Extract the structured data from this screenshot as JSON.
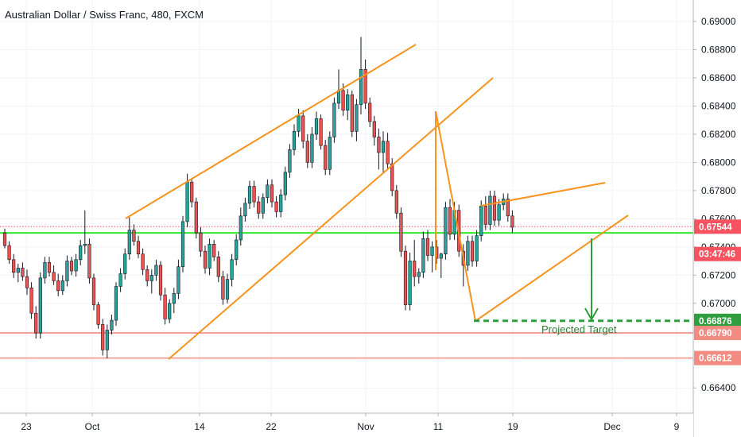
{
  "header": {
    "title": "Australian Dollar / Swiss Franc, 480, FXCM"
  },
  "colors": {
    "up": "#26a69a",
    "down": "#ef5350",
    "candle_border": "#131722",
    "drawing": "#f7931e",
    "support_green": "#2ee82e",
    "resistance_red": "#f28b82",
    "target_green": "#2e9e3e",
    "price_badge": "#f7525f"
  },
  "chart_data": {
    "type": "candlestick",
    "title": "Australian Dollar / Swiss Franc, 480, FXCM",
    "ylim": [
      0.6628,
      0.6907
    ],
    "y_ticks": [
      "0.69000",
      "0.68800",
      "0.68600",
      "0.68400",
      "0.68200",
      "0.68000",
      "0.67800",
      "0.67600",
      "0.67400",
      "0.67200",
      "0.67000",
      "0.66800",
      "0.66600",
      "0.66400"
    ],
    "x_ticks": [
      "23",
      "Oct",
      "14",
      "22",
      "Nov",
      "11",
      "19",
      "Dec",
      "9"
    ],
    "price_labels": [
      {
        "text": "0.67544",
        "value": 0.67544,
        "color": "#f7525f"
      },
      {
        "text": "03:47:46",
        "value": 0.6735,
        "color": "#f7525f"
      },
      {
        "text": "0.66876",
        "value": 0.66876,
        "color": "#2e9e3e"
      },
      {
        "text": "0.66790",
        "value": 0.6679,
        "color": "#f28b82"
      },
      {
        "text": "0.66612",
        "value": 0.66612,
        "color": "#f28b82"
      }
    ],
    "horizontal_lines": [
      {
        "value": 0.675,
        "color": "#2ee82e",
        "style": "solid"
      },
      {
        "value": 0.6679,
        "color": "#f28b82",
        "style": "solid"
      },
      {
        "value": 0.66612,
        "color": "#f28b82",
        "style": "solid"
      },
      {
        "value": 0.67544,
        "color": "#f7525f",
        "style": "dotted"
      },
      {
        "value": 0.66876,
        "color": "#2e9e3e",
        "style": "dashed"
      }
    ],
    "annotations": [
      {
        "text": "Projected Target"
      }
    ],
    "candles": [
      [
        0.675,
        0.6753,
        0.6739,
        0.6741
      ],
      [
        0.6741,
        0.6744,
        0.6728,
        0.6731
      ],
      [
        0.6731,
        0.6735,
        0.6718,
        0.6722
      ],
      [
        0.6722,
        0.6728,
        0.6715,
        0.6725
      ],
      [
        0.6725,
        0.6729,
        0.6716,
        0.6719
      ],
      [
        0.6719,
        0.6724,
        0.6706,
        0.6711
      ],
      [
        0.6711,
        0.6715,
        0.6689,
        0.6693
      ],
      [
        0.6693,
        0.6698,
        0.6675,
        0.6679
      ],
      [
        0.6679,
        0.6722,
        0.6675,
        0.6718
      ],
      [
        0.6718,
        0.6733,
        0.6714,
        0.6729
      ],
      [
        0.6729,
        0.6733,
        0.6719,
        0.6722
      ],
      [
        0.6722,
        0.6727,
        0.6713,
        0.6716
      ],
      [
        0.6716,
        0.6721,
        0.6705,
        0.6709
      ],
      [
        0.6709,
        0.672,
        0.6706,
        0.6716
      ],
      [
        0.6716,
        0.6734,
        0.6712,
        0.673
      ],
      [
        0.673,
        0.6733,
        0.672,
        0.6723
      ],
      [
        0.6723,
        0.6735,
        0.6719,
        0.6731
      ],
      [
        0.6731,
        0.6745,
        0.6727,
        0.6741
      ],
      [
        0.6741,
        0.6766,
        0.6735,
        0.6742
      ],
      [
        0.6742,
        0.6746,
        0.6714,
        0.6718
      ],
      [
        0.6718,
        0.6721,
        0.6695,
        0.6699
      ],
      [
        0.6699,
        0.6701,
        0.6682,
        0.6685
      ],
      [
        0.6685,
        0.6689,
        0.6663,
        0.6667
      ],
      [
        0.6667,
        0.6685,
        0.6661,
        0.6681
      ],
      [
        0.6681,
        0.6692,
        0.6678,
        0.6688
      ],
      [
        0.6688,
        0.6715,
        0.6684,
        0.6712
      ],
      [
        0.6712,
        0.6725,
        0.6708,
        0.6721
      ],
      [
        0.6721,
        0.6739,
        0.6717,
        0.6735
      ],
      [
        0.6735,
        0.6761,
        0.6731,
        0.6752
      ],
      [
        0.6752,
        0.6756,
        0.6741,
        0.6744
      ],
      [
        0.6744,
        0.6748,
        0.6732,
        0.6735
      ],
      [
        0.6735,
        0.6739,
        0.672,
        0.6724
      ],
      [
        0.6724,
        0.6727,
        0.6712,
        0.6716
      ],
      [
        0.6716,
        0.6724,
        0.6707,
        0.672
      ],
      [
        0.672,
        0.6731,
        0.6716,
        0.6727
      ],
      [
        0.6727,
        0.673,
        0.6702,
        0.6706
      ],
      [
        0.6706,
        0.6711,
        0.6685,
        0.6689
      ],
      [
        0.6689,
        0.6703,
        0.6686,
        0.67
      ],
      [
        0.67,
        0.6711,
        0.6693,
        0.6707
      ],
      [
        0.6707,
        0.6731,
        0.6703,
        0.6726
      ],
      [
        0.6726,
        0.6762,
        0.6722,
        0.6758
      ],
      [
        0.6758,
        0.6792,
        0.6754,
        0.6786
      ],
      [
        0.6786,
        0.6789,
        0.6768,
        0.6772
      ],
      [
        0.6772,
        0.6775,
        0.6746,
        0.675
      ],
      [
        0.675,
        0.6754,
        0.6733,
        0.6737
      ],
      [
        0.6737,
        0.6741,
        0.6721,
        0.6725
      ],
      [
        0.6725,
        0.6746,
        0.672,
        0.6742
      ],
      [
        0.6742,
        0.6745,
        0.673,
        0.6733
      ],
      [
        0.6733,
        0.6737,
        0.6715,
        0.6719
      ],
      [
        0.6719,
        0.6723,
        0.6699,
        0.6703
      ],
      [
        0.6703,
        0.6721,
        0.67,
        0.6717
      ],
      [
        0.6717,
        0.6735,
        0.6712,
        0.6731
      ],
      [
        0.6731,
        0.6749,
        0.6727,
        0.6745
      ],
      [
        0.6745,
        0.6768,
        0.6741,
        0.6762
      ],
      [
        0.6762,
        0.6775,
        0.6758,
        0.6771
      ],
      [
        0.6771,
        0.6787,
        0.6767,
        0.6783
      ],
      [
        0.6783,
        0.6787,
        0.6768,
        0.6772
      ],
      [
        0.6772,
        0.6776,
        0.676,
        0.6764
      ],
      [
        0.6764,
        0.6778,
        0.676,
        0.6775
      ],
      [
        0.6775,
        0.6788,
        0.6771,
        0.6784
      ],
      [
        0.6784,
        0.6788,
        0.6768,
        0.6772
      ],
      [
        0.6772,
        0.6776,
        0.6761,
        0.6765
      ],
      [
        0.6765,
        0.6781,
        0.6761,
        0.6777
      ],
      [
        0.6777,
        0.6797,
        0.6773,
        0.6793
      ],
      [
        0.6793,
        0.6813,
        0.6789,
        0.6809
      ],
      [
        0.6809,
        0.6827,
        0.6805,
        0.6822
      ],
      [
        0.6822,
        0.6838,
        0.6818,
        0.6833
      ],
      [
        0.6833,
        0.6837,
        0.681,
        0.6815
      ],
      [
        0.6815,
        0.682,
        0.6796,
        0.68
      ],
      [
        0.68,
        0.6825,
        0.6796,
        0.682
      ],
      [
        0.682,
        0.6836,
        0.6816,
        0.6831
      ],
      [
        0.6831,
        0.6834,
        0.6809,
        0.6812
      ],
      [
        0.6812,
        0.6816,
        0.6791,
        0.6795
      ],
      [
        0.6795,
        0.6822,
        0.6791,
        0.6818
      ],
      [
        0.6818,
        0.6846,
        0.6814,
        0.6842
      ],
      [
        0.6842,
        0.6866,
        0.6838,
        0.6851
      ],
      [
        0.6851,
        0.6856,
        0.6833,
        0.6837
      ],
      [
        0.6837,
        0.6852,
        0.683,
        0.6848
      ],
      [
        0.6848,
        0.6851,
        0.6818,
        0.6822
      ],
      [
        0.6822,
        0.6845,
        0.6815,
        0.6841
      ],
      [
        0.6841,
        0.6889,
        0.6834,
        0.6866
      ],
      [
        0.6866,
        0.6873,
        0.6838,
        0.6842
      ],
      [
        0.6842,
        0.6846,
        0.6825,
        0.6829
      ],
      [
        0.6829,
        0.6833,
        0.6812,
        0.6818
      ],
      [
        0.6818,
        0.6824,
        0.6795,
        0.6807
      ],
      [
        0.6807,
        0.6822,
        0.6793,
        0.6815
      ],
      [
        0.6815,
        0.6821,
        0.6795,
        0.6799
      ],
      [
        0.6799,
        0.6803,
        0.6776,
        0.678
      ],
      [
        0.678,
        0.6784,
        0.676,
        0.6764
      ],
      [
        0.6764,
        0.6768,
        0.6733,
        0.6737
      ],
      [
        0.6737,
        0.6741,
        0.6695,
        0.6699
      ],
      [
        0.6699,
        0.6736,
        0.6695,
        0.673
      ],
      [
        0.673,
        0.6745,
        0.6712,
        0.6719
      ],
      [
        0.6719,
        0.6725,
        0.6714,
        0.6722
      ],
      [
        0.6722,
        0.6751,
        0.6718,
        0.6746
      ],
      [
        0.6746,
        0.6752,
        0.673,
        0.6734
      ],
      [
        0.6734,
        0.6744,
        0.6722,
        0.674
      ],
      [
        0.674,
        0.6745,
        0.6728,
        0.6732
      ],
      [
        0.6732,
        0.6736,
        0.6718,
        0.6735
      ],
      [
        0.6735,
        0.6772,
        0.6731,
        0.6768
      ],
      [
        0.6768,
        0.6774,
        0.6745,
        0.6749
      ],
      [
        0.6749,
        0.6772,
        0.6745,
        0.6766
      ],
      [
        0.6766,
        0.677,
        0.6733,
        0.6737
      ],
      [
        0.6737,
        0.6742,
        0.6712,
        0.6727
      ],
      [
        0.6727,
        0.6748,
        0.6723,
        0.6744
      ],
      [
        0.6744,
        0.6748,
        0.6726,
        0.673
      ],
      [
        0.673,
        0.6752,
        0.6726,
        0.6748
      ],
      [
        0.6748,
        0.6773,
        0.6744,
        0.6769
      ],
      [
        0.6769,
        0.6776,
        0.6752,
        0.6756
      ],
      [
        0.6756,
        0.678,
        0.6752,
        0.6776
      ],
      [
        0.6776,
        0.678,
        0.6755,
        0.6759
      ],
      [
        0.6759,
        0.6774,
        0.6755,
        0.677
      ],
      [
        0.677,
        0.6778,
        0.6766,
        0.6774
      ],
      [
        0.6774,
        0.6778,
        0.6758,
        0.6762
      ],
      [
        0.6762,
        0.6766,
        0.675,
        0.6754
      ]
    ]
  }
}
